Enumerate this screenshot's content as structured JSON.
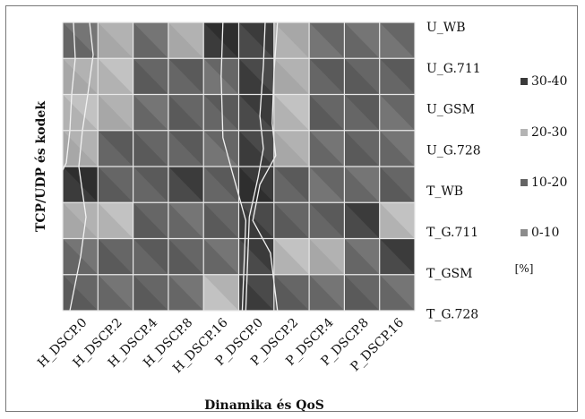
{
  "chart_data": {
    "type": "heatmap",
    "title": "",
    "xlabel": "Dinamika és QoS",
    "ylabel": "TCP/UDP és kodek",
    "x_categories": [
      "H_DSCP.0",
      "H_DSCP.2",
      "H_DSCP.4",
      "H_DSCP.8",
      "H_DSCP.16",
      "P_DSCP.0",
      "P_DSCP.2",
      "P_DSCP.4",
      "P_DSCP.8",
      "P_DSCP.16"
    ],
    "y_categories": [
      "U_WB",
      "U_G.711",
      "U_GSM",
      "U_G.728",
      "T_WB",
      "T_G.711",
      "T_GSM",
      "T_G.728"
    ],
    "color_bands": [
      {
        "label": "30-40",
        "color": "#3a3a3a"
      },
      {
        "label": "20-30",
        "color": "#b4b4b4"
      },
      {
        "label": "10-20",
        "color": "#646464"
      },
      {
        "label": "0-10",
        "color": "#8c8c8c"
      }
    ],
    "unit_label": "[%]",
    "values": [
      [
        12,
        22,
        16,
        22,
        34,
        36,
        22,
        16,
        12,
        16
      ],
      [
        22,
        24,
        15,
        14,
        16,
        36,
        26,
        15,
        14,
        15
      ],
      [
        24,
        25,
        16,
        14,
        15,
        36,
        28,
        18,
        15,
        16
      ],
      [
        22,
        18,
        14,
        18,
        16,
        36,
        26,
        16,
        14,
        12
      ],
      [
        34,
        14,
        14,
        32,
        14,
        38,
        18,
        16,
        12,
        14
      ],
      [
        22,
        24,
        14,
        16,
        18,
        36,
        14,
        14,
        32,
        24
      ],
      [
        12,
        14,
        14,
        14,
        16,
        36,
        24,
        22,
        16,
        32
      ],
      [
        14,
        16,
        14,
        16,
        24,
        36,
        14,
        16,
        14,
        16
      ]
    ]
  }
}
